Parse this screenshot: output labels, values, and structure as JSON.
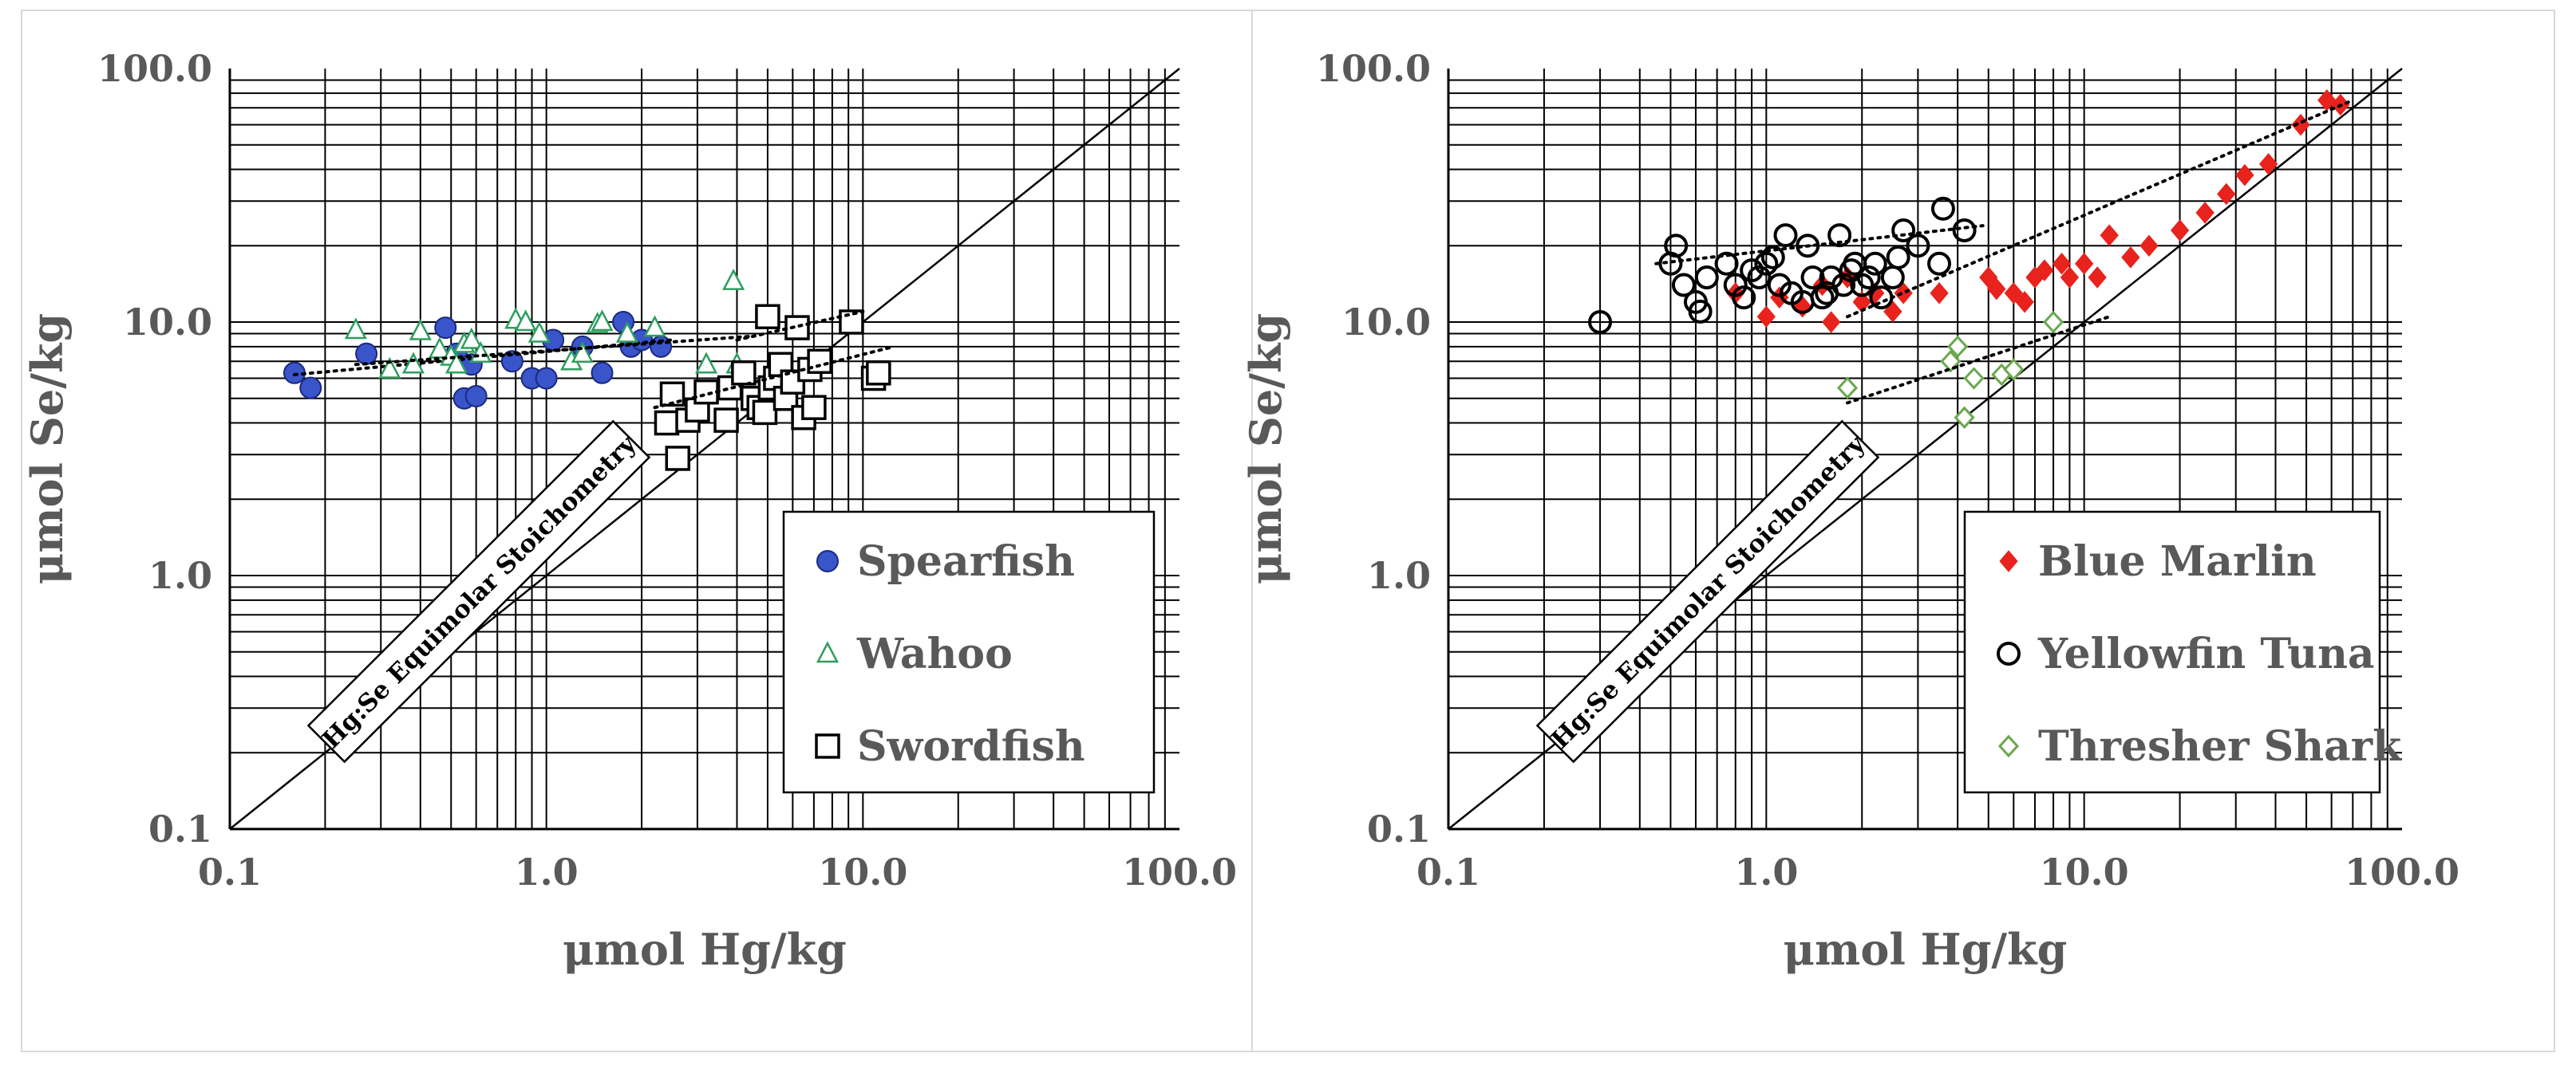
{
  "chart_data": [
    {
      "type": "scatter",
      "panel": "left",
      "xlabel": "μmol Hg/kg",
      "ylabel": "μmol Se/kg",
      "xscale": "log",
      "yscale": "log",
      "xlim": [
        0.1,
        100
      ],
      "ylim": [
        0.1,
        100
      ],
      "xticks": [
        "0.1",
        "1.0",
        "10.0",
        "100.0"
      ],
      "yticks": [
        "0.1",
        "1.0",
        "10.0",
        "100.0"
      ],
      "annotation": "Hg:Se Equimolar Stoichometry",
      "legend_position": "bottom-right",
      "series": [
        {
          "name": "Spearfish",
          "marker": "circle-filled",
          "color": "#3a54c9",
          "stroke": "#1a2a80",
          "points": [
            [
              0.16,
              6.3
            ],
            [
              0.18,
              5.5
            ],
            [
              0.27,
              7.5
            ],
            [
              0.48,
              9.5
            ],
            [
              0.52,
              7.5
            ],
            [
              0.55,
              5.0
            ],
            [
              0.58,
              6.8
            ],
            [
              0.6,
              5.1
            ],
            [
              0.78,
              7.0
            ],
            [
              0.9,
              6.0
            ],
            [
              1.0,
              6.0
            ],
            [
              1.05,
              8.5
            ],
            [
              1.3,
              8.0
            ],
            [
              1.5,
              6.3
            ],
            [
              1.75,
              10.0
            ],
            [
              1.85,
              8.0
            ],
            [
              2.0,
              8.5
            ],
            [
              2.3,
              8.0
            ]
          ],
          "trend": [
            [
              0.16,
              6.2
            ],
            [
              2.5,
              8.5
            ]
          ]
        },
        {
          "name": "Wahoo",
          "marker": "triangle-open",
          "color": "#2e9e5e",
          "points": [
            [
              0.25,
              9.3
            ],
            [
              0.32,
              6.5
            ],
            [
              0.38,
              6.8
            ],
            [
              0.4,
              9.2
            ],
            [
              0.46,
              7.8
            ],
            [
              0.5,
              7.3
            ],
            [
              0.52,
              6.8
            ],
            [
              0.55,
              8.2
            ],
            [
              0.58,
              8.5
            ],
            [
              0.62,
              7.5
            ],
            [
              0.8,
              10.2
            ],
            [
              0.86,
              10.0
            ],
            [
              0.95,
              9.0
            ],
            [
              1.2,
              7.0
            ],
            [
              1.3,
              7.5
            ],
            [
              1.45,
              9.8
            ],
            [
              1.5,
              10.0
            ],
            [
              1.8,
              9.0
            ],
            [
              2.2,
              9.5
            ],
            [
              3.2,
              6.8
            ],
            [
              3.9,
              14.5
            ],
            [
              4.0,
              6.8
            ]
          ],
          "trend": [
            [
              0.25,
              6.8
            ],
            [
              4.5,
              8.8
            ]
          ]
        },
        {
          "name": "Swordfish",
          "marker": "square-open",
          "color": "#000000",
          "points": [
            [
              2.4,
              4.0
            ],
            [
              2.5,
              5.2
            ],
            [
              2.6,
              2.9
            ],
            [
              2.8,
              4.1
            ],
            [
              3.0,
              4.5
            ],
            [
              3.2,
              5.3
            ],
            [
              3.7,
              4.1
            ],
            [
              3.8,
              5.5
            ],
            [
              4.2,
              6.3
            ],
            [
              4.5,
              5.0
            ],
            [
              4.7,
              4.6
            ],
            [
              4.9,
              4.4
            ],
            [
              5.0,
              10.5
            ],
            [
              5.1,
              5.5
            ],
            [
              5.3,
              6.0
            ],
            [
              5.5,
              6.8
            ],
            [
              5.7,
              5.0
            ],
            [
              6.0,
              5.8
            ],
            [
              6.2,
              9.5
            ],
            [
              6.5,
              4.2
            ],
            [
              6.8,
              6.5
            ],
            [
              7.0,
              4.6
            ],
            [
              7.3,
              7.0
            ],
            [
              9.2,
              10.0
            ],
            [
              10.8,
              6.0
            ],
            [
              11.2,
              6.3
            ]
          ],
          "trend": [
            [
              2.2,
              4.6
            ],
            [
              12.5,
              8.0
            ]
          ],
          "trend2": [
            [
              4.0,
              8.5
            ],
            [
              10.0,
              11.0
            ]
          ]
        }
      ]
    },
    {
      "type": "scatter",
      "panel": "right",
      "xlabel": "μmol Hg/kg",
      "ylabel": "μmol Se/kg",
      "xscale": "log",
      "yscale": "log",
      "xlim": [
        0.1,
        100
      ],
      "ylim": [
        0.1,
        100
      ],
      "xticks": [
        "0.1",
        "1.0",
        "10.0",
        "100.0"
      ],
      "yticks": [
        "0.1",
        "1.0",
        "10.0",
        "100.0"
      ],
      "annotation": "Hg:Se Equimolar Stoichometry",
      "legend_position": "bottom-right",
      "series": [
        {
          "name": "Blue Marlin",
          "marker": "diamond-filled",
          "color": "#e8221c",
          "points": [
            [
              0.8,
              13
            ],
            [
              1.0,
              10.5
            ],
            [
              1.1,
              12.5
            ],
            [
              1.3,
              11.5
            ],
            [
              1.5,
              14
            ],
            [
              1.6,
              10
            ],
            [
              1.8,
              15
            ],
            [
              2.0,
              12
            ],
            [
              2.2,
              13
            ],
            [
              2.5,
              11
            ],
            [
              2.7,
              13
            ],
            [
              3.5,
              13
            ],
            [
              5.0,
              15
            ],
            [
              5.3,
              13.5
            ],
            [
              6.0,
              13
            ],
            [
              6.5,
              12
            ],
            [
              7.0,
              15
            ],
            [
              7.5,
              16
            ],
            [
              8.5,
              17
            ],
            [
              9.0,
              15
            ],
            [
              10,
              17
            ],
            [
              11,
              15
            ],
            [
              12,
              22
            ],
            [
              14,
              18
            ],
            [
              16,
              20
            ],
            [
              20,
              23
            ],
            [
              24,
              27
            ],
            [
              28,
              32
            ],
            [
              32,
              38
            ],
            [
              38,
              42
            ],
            [
              48,
              60
            ],
            [
              58,
              75
            ],
            [
              64,
              72
            ]
          ],
          "trend": [
            [
              1.8,
              10.5
            ],
            [
              70,
              75
            ]
          ]
        },
        {
          "name": "Yellowfin Tuna",
          "marker": "circle-open",
          "color": "#000000",
          "points": [
            [
              0.3,
              10
            ],
            [
              0.5,
              17
            ],
            [
              0.52,
              20
            ],
            [
              0.55,
              14
            ],
            [
              0.6,
              12
            ],
            [
              0.62,
              11
            ],
            [
              0.65,
              15
            ],
            [
              0.75,
              17
            ],
            [
              0.8,
              14
            ],
            [
              0.85,
              12.5
            ],
            [
              0.9,
              16
            ],
            [
              0.95,
              15
            ],
            [
              1.0,
              17
            ],
            [
              1.05,
              18
            ],
            [
              1.1,
              14
            ],
            [
              1.15,
              22
            ],
            [
              1.2,
              13
            ],
            [
              1.3,
              12
            ],
            [
              1.35,
              20
            ],
            [
              1.4,
              15
            ],
            [
              1.5,
              12.5
            ],
            [
              1.55,
              13
            ],
            [
              1.6,
              15
            ],
            [
              1.7,
              22
            ],
            [
              1.75,
              14
            ],
            [
              1.85,
              16
            ],
            [
              1.9,
              17
            ],
            [
              2.0,
              14
            ],
            [
              2.1,
              15
            ],
            [
              2.2,
              17
            ],
            [
              2.3,
              12.5
            ],
            [
              2.5,
              15
            ],
            [
              2.6,
              18
            ],
            [
              2.7,
              23
            ],
            [
              3.0,
              20
            ],
            [
              3.5,
              17
            ],
            [
              3.6,
              28
            ],
            [
              4.2,
              23
            ]
          ],
          "trend": [
            [
              0.45,
              17
            ],
            [
              4.8,
              24
            ]
          ]
        },
        {
          "name": "Thresher Shark",
          "marker": "diamond-open",
          "color": "#6aa84f",
          "points": [
            [
              1.8,
              5.5
            ],
            [
              3.8,
              7
            ],
            [
              4.0,
              8
            ],
            [
              4.2,
              4.2
            ],
            [
              4.5,
              6
            ],
            [
              5.5,
              6.2
            ],
            [
              6.0,
              6.5
            ],
            [
              8.0,
              10
            ]
          ],
          "trend": [
            [
              1.8,
              4.8
            ],
            [
              12,
              10.5
            ]
          ]
        }
      ]
    }
  ]
}
